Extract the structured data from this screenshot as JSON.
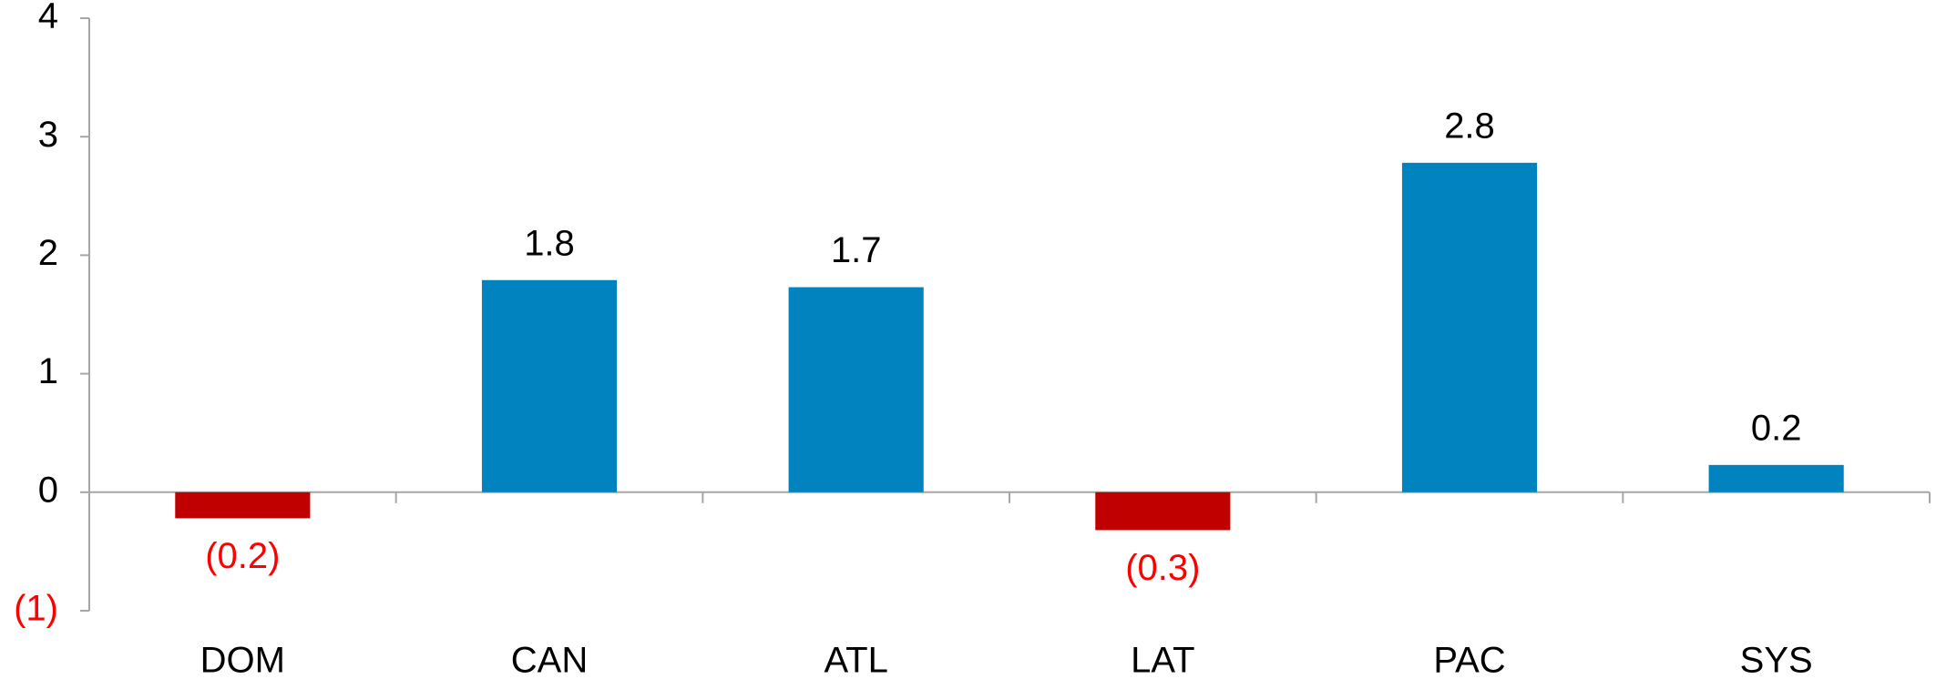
{
  "chart_data": {
    "type": "bar",
    "categories": [
      "DOM",
      "CAN",
      "ATL",
      "LAT",
      "PAC",
      "SYS"
    ],
    "values": [
      -0.22,
      1.79,
      1.73,
      -0.32,
      2.78,
      0.23
    ],
    "value_labels": [
      "(0.2)",
      "1.8",
      "1.7",
      "(0.3)",
      "2.8",
      "0.2"
    ],
    "colors": [
      "#c00000",
      "#0083be",
      "#0083be",
      "#c00000",
      "#0083be",
      "#0083be"
    ],
    "ylim": [
      -1,
      4
    ],
    "yticks": [
      {
        "value": -1,
        "label": "(1)"
      },
      0,
      1,
      2,
      3,
      4
    ],
    "grid": false
  }
}
